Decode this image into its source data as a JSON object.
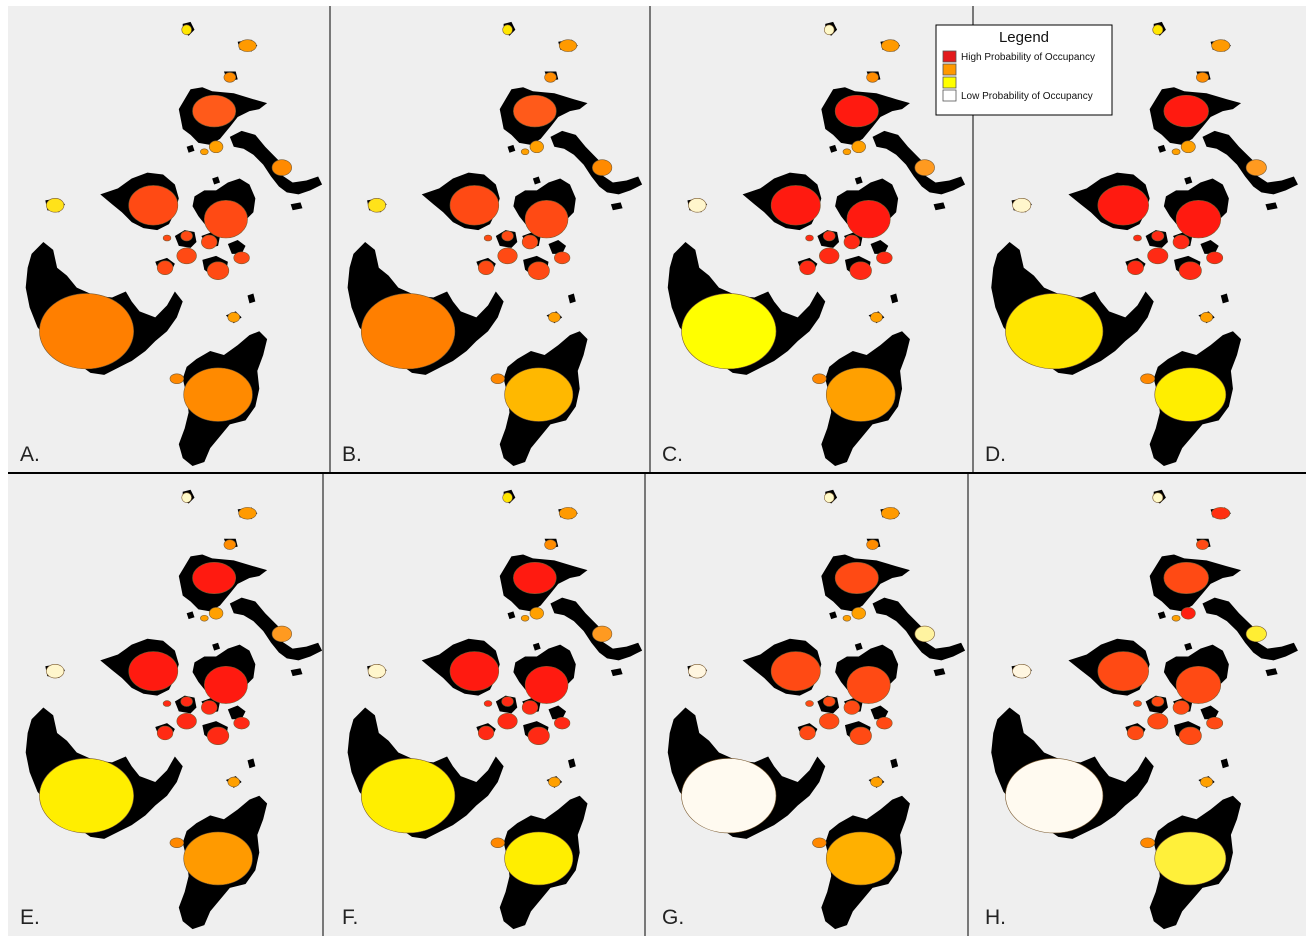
{
  "figure": {
    "panels": [
      {
        "label": "A.",
        "site_colors": {
          "n1": "#ffe600",
          "n2": "#ff9a00",
          "n3": "#ff8c00",
          "s1": "#ff5a1a",
          "s2": "#ff8a00",
          "s3": "#ffa000",
          "sw": "#ffe21a",
          "c1": "#ff4a14",
          "c2": "#ff4a14",
          "sm1": "#ff4a14",
          "sm2": "#ff4a14",
          "sm3": "#ff4a14",
          "sm4": "#ff4a14",
          "sm5": "#ff4a14",
          "sm6": "#ff4a14",
          "sm7": "#ff4a14",
          "m1": "#ffa000",
          "m2": "#ff8800",
          "big": "#ff7f00",
          "bot": "#ff8a00",
          "bs": "#ffa000"
        }
      },
      {
        "label": "B.",
        "site_colors": {
          "n1": "#ffe600",
          "n2": "#ff9a00",
          "n3": "#ff8c00",
          "s1": "#ff5a1a",
          "s2": "#ff8a00",
          "s3": "#ffa000",
          "sw": "#ffe21a",
          "c1": "#ff4a14",
          "c2": "#ff4a14",
          "sm1": "#ff4a14",
          "sm2": "#ff4a14",
          "sm3": "#ff4a14",
          "sm4": "#ff4a14",
          "sm5": "#ff4a14",
          "sm6": "#ff4a14",
          "sm7": "#ff4a14",
          "m1": "#ffa000",
          "m2": "#ff8800",
          "big": "#ff7f00",
          "bot": "#ffb800",
          "bs": "#ffa000"
        }
      },
      {
        "label": "C.",
        "site_colors": {
          "n1": "#fff9c8",
          "n2": "#ff9a00",
          "n3": "#ff8c00",
          "s1": "#ff1a10",
          "s2": "#ff9a20",
          "s3": "#ffa000",
          "sw": "#fff6cc",
          "c1": "#ff1a10",
          "c2": "#ff1a10",
          "sm1": "#ff2a14",
          "sm2": "#ff2a14",
          "sm3": "#ff2a14",
          "sm4": "#ff2a14",
          "sm5": "#ff2a14",
          "sm6": "#ff2a14",
          "sm7": "#ff2a14",
          "m1": "#ffa000",
          "m2": "#ff8800",
          "big": "#ffff00",
          "bot": "#ffa000",
          "bs": "#ffa000"
        }
      },
      {
        "label": "D.",
        "site_colors": {
          "n1": "#ffe600",
          "n2": "#ff9a00",
          "n3": "#ff8c00",
          "s1": "#ff1a10",
          "s2": "#ff9a20",
          "s3": "#ffa000",
          "sw": "#fff6cc",
          "c1": "#ff1a10",
          "c2": "#ff1a10",
          "sm1": "#ff2a14",
          "sm2": "#ff2a14",
          "sm3": "#ff2a14",
          "sm4": "#ff2a14",
          "sm5": "#ff2a14",
          "sm6": "#ff2a14",
          "sm7": "#ff2a14",
          "m1": "#ffa000",
          "m2": "#ff8800",
          "big": "#ffe600",
          "bot": "#ffee00",
          "bs": "#ffa000"
        }
      },
      {
        "label": "E.",
        "site_colors": {
          "n1": "#fff9c8",
          "n2": "#ff9a00",
          "n3": "#ff8c00",
          "s1": "#ff1a10",
          "s2": "#ff9a20",
          "s3": "#ffa000",
          "sw": "#fff6cc",
          "c1": "#ff1a10",
          "c2": "#ff1a10",
          "sm1": "#ff2a14",
          "sm2": "#ff2a14",
          "sm3": "#ff2a14",
          "sm4": "#ff2a14",
          "sm5": "#ff2a14",
          "sm6": "#ff2a14",
          "sm7": "#ff2a14",
          "m1": "#ffa000",
          "m2": "#ff8800",
          "big": "#ffee00",
          "bot": "#ff9a00",
          "bs": "#ffa000"
        }
      },
      {
        "label": "F.",
        "site_colors": {
          "n1": "#ffe600",
          "n2": "#ff9a00",
          "n3": "#ff8c00",
          "s1": "#ff1a10",
          "s2": "#ff9a20",
          "s3": "#ffa000",
          "sw": "#fff6cc",
          "c1": "#ff1a10",
          "c2": "#ff1a10",
          "sm1": "#ff2a14",
          "sm2": "#ff2a14",
          "sm3": "#ff2a14",
          "sm4": "#ff2a14",
          "sm5": "#ff2a14",
          "sm6": "#ff2a14",
          "sm7": "#ff2a14",
          "m1": "#ffa000",
          "m2": "#ff8800",
          "big": "#ffee00",
          "bot": "#ffee00",
          "bs": "#ffa000"
        }
      },
      {
        "label": "G.",
        "site_colors": {
          "n1": "#fff9c8",
          "n2": "#ff9a00",
          "n3": "#ff8c00",
          "s1": "#ff4a14",
          "s2": "#fff3a0",
          "s3": "#ffa000",
          "sw": "#fff6e0",
          "c1": "#ff4a14",
          "c2": "#ff4a14",
          "sm1": "#ff4a14",
          "sm2": "#ff4a14",
          "sm3": "#ff4a14",
          "sm4": "#ff4a14",
          "sm5": "#ff4a14",
          "sm6": "#ff4a14",
          "sm7": "#ff4a14",
          "m1": "#ffa000",
          "m2": "#ff8800",
          "big": "#fffaf0",
          "bot": "#ffb000",
          "bs": "#ffa000"
        }
      },
      {
        "label": "H.",
        "site_colors": {
          "n1": "#fff9c8",
          "n2": "#ff3010",
          "n3": "#ff4a14",
          "s1": "#ff4a14",
          "s2": "#ffee33",
          "s3": "#ff2010",
          "sw": "#fff6e0",
          "c1": "#ff4a14",
          "c2": "#ff4a14",
          "sm1": "#ff4a14",
          "sm2": "#ff4a14",
          "sm3": "#ff4a14",
          "sm4": "#ff4a14",
          "sm5": "#ff4a14",
          "sm6": "#ff4a14",
          "sm7": "#ff4a14",
          "m1": "#ffa000",
          "m2": "#ff8800",
          "big": "#fffaf0",
          "bot": "#fff03a",
          "bs": "#ffa000"
        }
      }
    ]
  },
  "legend": {
    "title": "Legend",
    "items": [
      {
        "color": "#e31a1c",
        "label": "High Probability of Occupancy"
      },
      {
        "color": "#ff9900",
        "label": ""
      },
      {
        "color": "#ffff00",
        "label": ""
      },
      {
        "color": "#ffffff",
        "label": "Low Probability of Occupancy"
      }
    ]
  },
  "colors": {
    "panel_bg": "#efefef",
    "land": "#000000",
    "border": "#000000"
  }
}
